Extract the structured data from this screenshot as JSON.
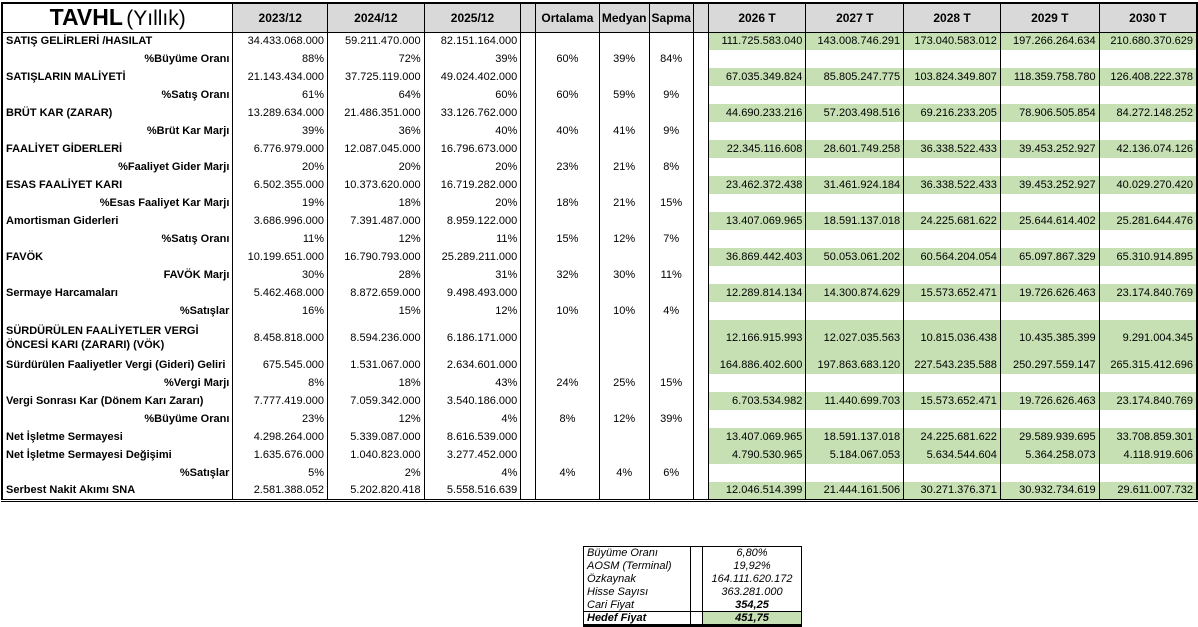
{
  "title": {
    "ticker": "TAVHL",
    "period": "(Yıllık)"
  },
  "columns": {
    "history": [
      "2023/12",
      "2024/12",
      "2025/12"
    ],
    "stats": [
      "Ortalama",
      "Medyan",
      "Sapma"
    ],
    "forecast": [
      "2026 T",
      "2027 T",
      "2028 T",
      "2029 T",
      "2030 T"
    ]
  },
  "rows": [
    {
      "label": "SATIŞ GELİRLERİ /HASILAT",
      "type": "value",
      "history": [
        "34.433.068.000",
        "59.211.470.000",
        "82.151.164.000"
      ],
      "forecast": [
        "111.725.583.040",
        "143.008.746.291",
        "173.040.583.012",
        "197.266.264.634",
        "210.680.370.629"
      ]
    },
    {
      "label": "%Büyüme Oranı",
      "type": "pct",
      "history": [
        "88%",
        "72%",
        "39%"
      ],
      "stats": [
        "60%",
        "39%",
        "84%"
      ]
    },
    {
      "label": "SATIŞLARIN MALİYETİ",
      "type": "value",
      "history": [
        "21.143.434.000",
        "37.725.119.000",
        "49.024.402.000"
      ],
      "forecast": [
        "67.035.349.824",
        "85.805.247.775",
        "103.824.349.807",
        "118.359.758.780",
        "126.408.222.378"
      ]
    },
    {
      "label": "%Satış Oranı",
      "type": "pct",
      "history": [
        "61%",
        "64%",
        "60%"
      ],
      "stats": [
        "60%",
        "59%",
        "9%"
      ]
    },
    {
      "label": "BRÜT KAR (ZARAR)",
      "type": "value",
      "history": [
        "13.289.634.000",
        "21.486.351.000",
        "33.126.762.000"
      ],
      "forecast": [
        "44.690.233.216",
        "57.203.498.516",
        "69.216.233.205",
        "78.906.505.854",
        "84.272.148.252"
      ]
    },
    {
      "label": "%Brüt Kar Marjı",
      "type": "pct",
      "history": [
        "39%",
        "36%",
        "40%"
      ],
      "stats": [
        "40%",
        "41%",
        "9%"
      ]
    },
    {
      "label": "FAALİYET GİDERLERİ",
      "type": "value",
      "history": [
        "6.776.979.000",
        "12.087.045.000",
        "16.796.673.000"
      ],
      "forecast": [
        "22.345.116.608",
        "28.601.749.258",
        "36.338.522.433",
        "39.453.252.927",
        "42.136.074.126"
      ]
    },
    {
      "label": "%Faaliyet Gider Marjı",
      "type": "pct",
      "history": [
        "20%",
        "20%",
        "20%"
      ],
      "stats": [
        "23%",
        "21%",
        "8%"
      ]
    },
    {
      "label": "ESAS FAALİYET KARI",
      "type": "value",
      "history": [
        "6.502.355.000",
        "10.373.620.000",
        "16.719.282.000"
      ],
      "forecast": [
        "23.462.372.438",
        "31.461.924.184",
        "36.338.522.433",
        "39.453.252.927",
        "40.029.270.420"
      ]
    },
    {
      "label": "%Esas Faaliyet Kar Marjı",
      "type": "pct",
      "history": [
        "19%",
        "18%",
        "20%"
      ],
      "stats": [
        "18%",
        "21%",
        "15%"
      ]
    },
    {
      "label": "Amortisman Giderleri",
      "type": "value",
      "history": [
        "3.686.996.000",
        "7.391.487.000",
        "8.959.122.000"
      ],
      "forecast": [
        "13.407.069.965",
        "18.591.137.018",
        "24.225.681.622",
        "25.644.614.402",
        "25.281.644.476"
      ]
    },
    {
      "label": "%Satış Oranı",
      "type": "pct",
      "history": [
        "11%",
        "12%",
        "11%"
      ],
      "stats": [
        "15%",
        "12%",
        "7%"
      ]
    },
    {
      "label": "FAVÖK",
      "type": "value",
      "history": [
        "10.199.651.000",
        "16.790.793.000",
        "25.289.211.000"
      ],
      "forecast": [
        "36.869.442.403",
        "50.053.061.202",
        "60.564.204.054",
        "65.097.867.329",
        "65.310.914.895"
      ]
    },
    {
      "label": "FAVÖK Marjı",
      "type": "pct",
      "history": [
        "30%",
        "28%",
        "31%"
      ],
      "stats": [
        "32%",
        "30%",
        "11%"
      ]
    },
    {
      "label": "Sermaye Harcamaları",
      "type": "value",
      "history": [
        "5.462.468.000",
        "8.872.659.000",
        "9.498.493.000"
      ],
      "forecast": [
        "12.289.814.134",
        "14.300.874.629",
        "15.573.652.471",
        "19.726.626.463",
        "23.174.840.769"
      ]
    },
    {
      "label": "%Satışlar",
      "type": "pct",
      "history": [
        "16%",
        "15%",
        "12%"
      ],
      "stats": [
        "10%",
        "10%",
        "4%"
      ]
    },
    {
      "label": "SÜRDÜRÜLEN FAALİYETLER VERGİ ÖNCESİ KARI (ZARARI) (VÖK)",
      "type": "value",
      "tall": true,
      "history": [
        "8.458.818.000",
        "8.594.236.000",
        "6.186.171.000"
      ],
      "forecast": [
        "12.166.915.993",
        "12.027.035.563",
        "10.815.036.438",
        "10.435.385.399",
        "9.291.004.345"
      ]
    },
    {
      "label": "Sürdürülen Faaliyetler Vergi (Gideri) Geliri",
      "type": "value",
      "history": [
        "675.545.000",
        "1.531.067.000",
        "2.634.601.000"
      ],
      "forecast": [
        "164.886.402.600",
        "197.863.683.120",
        "227.543.235.588",
        "250.297.559.147",
        "265.315.412.696"
      ]
    },
    {
      "label": "%Vergi Marjı",
      "type": "pct",
      "history": [
        "8%",
        "18%",
        "43%"
      ],
      "stats": [
        "24%",
        "25%",
        "15%"
      ]
    },
    {
      "label": "Vergi Sonrası Kar (Dönem Karı Zararı)",
      "type": "value",
      "history": [
        "7.777.419.000",
        "7.059.342.000",
        "3.540.186.000"
      ],
      "forecast": [
        "6.703.534.982",
        "11.440.699.703",
        "15.573.652.471",
        "19.726.626.463",
        "23.174.840.769"
      ]
    },
    {
      "label": "%Büyüme Oranı",
      "type": "pct",
      "history": [
        "23%",
        "12%",
        "4%"
      ],
      "stats": [
        "8%",
        "12%",
        "39%"
      ]
    },
    {
      "label": "Net İşletme Sermayesi",
      "type": "value",
      "history": [
        "4.298.264.000",
        "5.339.087.000",
        "8.616.539.000"
      ],
      "forecast": [
        "13.407.069.965",
        "18.591.137.018",
        "24.225.681.622",
        "29.589.939.695",
        "33.708.859.301"
      ]
    },
    {
      "label": "Net İşletme Sermayesi Değişimi",
      "type": "value",
      "history": [
        "1.635.676.000",
        "1.040.823.000",
        "3.277.452.000"
      ],
      "forecast": [
        "4.790.530.965",
        "5.184.067.053",
        "5.634.544.604",
        "5.364.258.073",
        "4.118.919.606"
      ]
    },
    {
      "label": "%Satışlar",
      "type": "pct",
      "history": [
        "5%",
        "2%",
        "4%"
      ],
      "stats": [
        "4%",
        "4%",
        "6%"
      ]
    },
    {
      "label": "Serbest Nakit Akımı SNA",
      "type": "value",
      "history": [
        "2.581.388.052",
        "5.202.820.418",
        "5.558.516.639"
      ],
      "forecast": [
        "12.046.514.399",
        "21.444.161.506",
        "30.271.376.371",
        "30.932.734.619",
        "29.611.007.732"
      ]
    }
  ],
  "summary": {
    "rows": [
      {
        "label": "Büyüme Oranı",
        "value": "6,80%"
      },
      {
        "label": "AOSM (Terminal)",
        "value": "19,92%"
      },
      {
        "label": "Özkaynak",
        "value": "164.111.620.172"
      },
      {
        "label": "Hisse Sayısı",
        "value": "363.281.000"
      },
      {
        "label": "Cari Fiyat",
        "value": "354,25",
        "value_bold": true
      },
      {
        "label": "Hedef Fiyat",
        "value": "451,75",
        "label_bold": true,
        "value_bold": true,
        "highlight": true,
        "separated": true
      }
    ]
  },
  "colors": {
    "header_bg": "#d9d9d9",
    "highlight_green": "#c6e0b4",
    "border": "#000000"
  }
}
